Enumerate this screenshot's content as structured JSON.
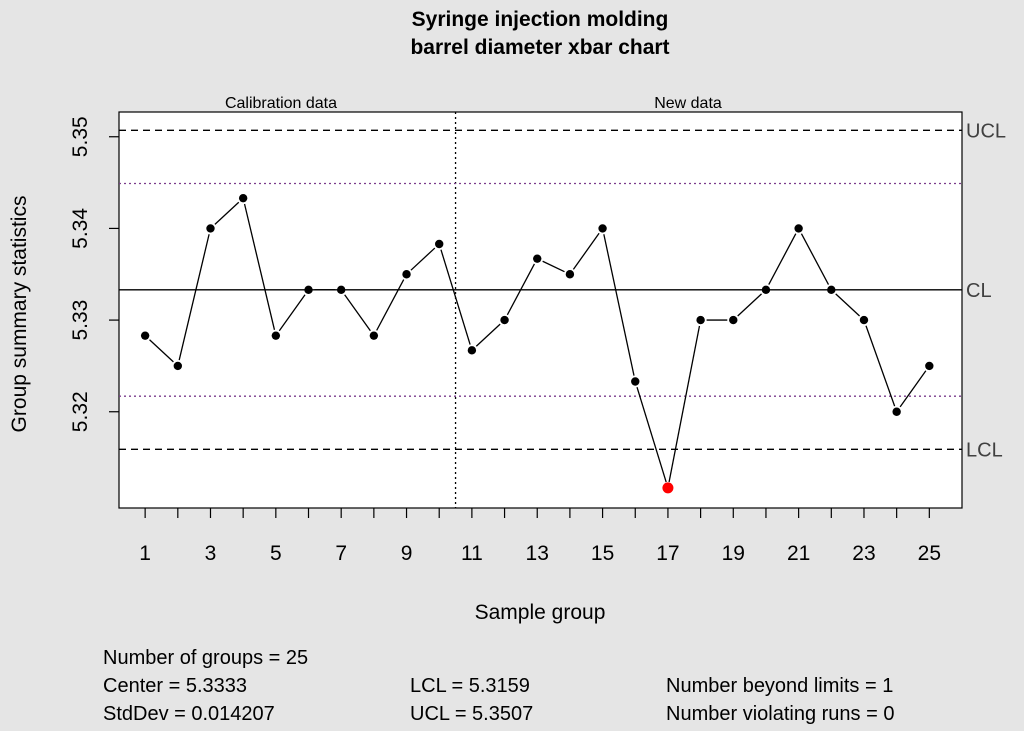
{
  "chart_data": {
    "type": "line",
    "title_lines": [
      "Syringe injection molding",
      "barrel diameter xbar chart"
    ],
    "xlabel": "Sample group",
    "ylabel": "Group summary statistics",
    "x": [
      1,
      2,
      3,
      4,
      5,
      6,
      7,
      8,
      9,
      10,
      11,
      12,
      13,
      14,
      15,
      16,
      17,
      18,
      19,
      20,
      21,
      22,
      23,
      24,
      25
    ],
    "values": [
      5.3283,
      5.325,
      5.34,
      5.3433,
      5.3283,
      5.3333,
      5.3333,
      5.3283,
      5.335,
      5.3383,
      5.3267,
      5.33,
      5.3367,
      5.335,
      5.34,
      5.3233,
      5.3117,
      5.33,
      5.33,
      5.3333,
      5.34,
      5.3333,
      5.33,
      5.32,
      5.325
    ],
    "out_of_control": [
      17
    ],
    "xlim": [
      0.2,
      26.0
    ],
    "ylim": [
      5.3095,
      5.3527
    ],
    "xticks": [
      1,
      2,
      3,
      4,
      5,
      6,
      7,
      8,
      9,
      10,
      11,
      12,
      13,
      14,
      15,
      16,
      17,
      18,
      19,
      20,
      21,
      22,
      23,
      24,
      25
    ],
    "xtick_labels": [
      "1",
      "3",
      "5",
      "7",
      "9",
      "11",
      "13",
      "15",
      "17",
      "19",
      "21",
      "23",
      "25"
    ],
    "yticks": [
      5.32,
      5.33,
      5.34,
      5.35
    ],
    "ytick_labels": [
      "5.32",
      "5.33",
      "5.34",
      "5.35"
    ],
    "center_line": 5.3333,
    "ucl": 5.3507,
    "lcl": 5.3159,
    "warning_upper": 5.3449,
    "warning_lower": 5.3217,
    "phase_split": 10.5,
    "phase_labels": [
      "Calibration data",
      "New data"
    ],
    "limit_labels": {
      "ucl": "UCL",
      "cl": "CL",
      "lcl": "LCL"
    },
    "colors": {
      "background": "#e5e5e5",
      "plot_bg": "#ffffff",
      "point": "#000000",
      "violation_point": "#ff0000",
      "warning_line": "#7a3b8c",
      "limit_label": "#404040"
    },
    "grid": false,
    "legend": "none"
  },
  "stats": {
    "groups": "Number of groups = 25",
    "center": "Center = 5.3333",
    "stddev": "StdDev = 0.014207",
    "lcl": "LCL = 5.3159",
    "ucl": "UCL = 5.3507",
    "beyond": "Number beyond limits = 1",
    "violating": "Number violating runs = 0"
  }
}
